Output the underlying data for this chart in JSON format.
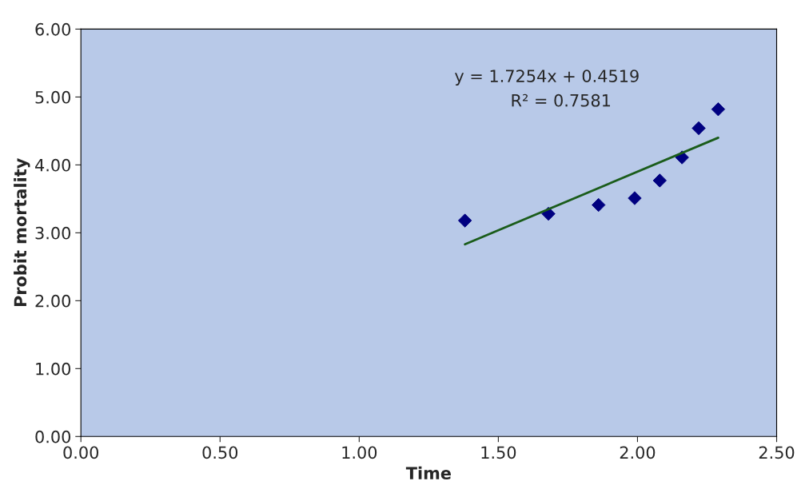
{
  "chart_data": {
    "type": "scatter",
    "xlabel": "Time",
    "ylabel": "Probit mortality",
    "annotations": [
      "y = 1.7254x + 0.4519",
      "R² = 0.7581"
    ],
    "series": [
      {
        "color": "#000080",
        "marker": "diamond",
        "x": [
          1.38,
          1.68,
          1.86,
          1.99,
          2.08,
          2.16,
          2.22,
          2.29
        ],
        "values": [
          3.18,
          3.28,
          3.41,
          3.51,
          3.77,
          4.11,
          4.54,
          4.82
        ]
      },
      {
        "type": "line",
        "color": "#1a5c1a",
        "marker": "none",
        "x": [
          1.38,
          2.29
        ],
        "values": [
          2.83,
          4.4
        ]
      }
    ],
    "xlim": [
      0,
      2.5
    ],
    "ylim": [
      0,
      6
    ],
    "xticks": [
      {
        "value": 0,
        "label": "0.00"
      },
      {
        "value": 0.5,
        "label": "0.50"
      },
      {
        "value": 1,
        "label": "1.00"
      },
      {
        "value": 1.5,
        "label": "1.50"
      },
      {
        "value": 2,
        "label": "2.00"
      },
      {
        "value": 2.5,
        "label": "2.50"
      }
    ],
    "yticks": [
      {
        "value": 0,
        "label": "0.00"
      },
      {
        "value": 1,
        "label": "1.00"
      },
      {
        "value": 2,
        "label": "2.00"
      },
      {
        "value": 3,
        "label": "3.00"
      },
      {
        "value": 4,
        "label": "4.00"
      },
      {
        "value": 5,
        "label": "5.00"
      },
      {
        "value": 6,
        "label": "6.00"
      }
    ],
    "grid": false,
    "legend": false
  }
}
